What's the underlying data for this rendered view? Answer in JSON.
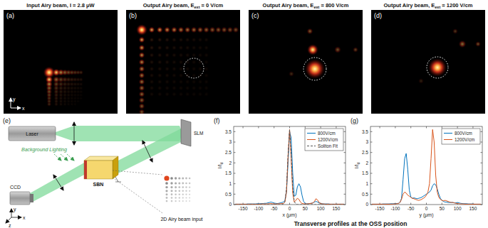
{
  "images": [
    {
      "label": "(a)",
      "title": "Input Airy beam, I = 2.8 μW",
      "axes": [
        "y",
        "x"
      ]
    },
    {
      "label": "(b)",
      "title": "Output Airy beam, E",
      "subscript": "ext",
      "title_end": " = 0 V/cm"
    },
    {
      "label": "(c)",
      "title": "Output Airy beam, E",
      "subscript": "ext",
      "title_end": " = 800 V/cm"
    },
    {
      "label": "(d)",
      "title": "Output Airy beam, E",
      "subscript": "ext",
      "title_end": " = 1200 V/cm"
    }
  ],
  "diagram": {
    "label": "(e)",
    "laser": "Laser",
    "lighting": "Background Lighting",
    "slm": "SLM",
    "crystal": "SBN",
    "camera": "CCD",
    "input": "2D Airy beam input",
    "axes": [
      "x",
      "y",
      "z"
    ]
  },
  "caption": "Transverse profiles at the OSS position",
  "chart_data": [
    {
      "type": "line",
      "label": "(f)",
      "xlabel": "x (μm)",
      "ylabel": "I/I",
      "ylabel_subscript": "d",
      "x": [
        -175,
        -170,
        -165,
        -160,
        -155,
        -150,
        -145,
        -140,
        -135,
        -130,
        -125,
        -120,
        -115,
        -110,
        -105,
        -100,
        -95,
        -90,
        -85,
        -80,
        -75,
        -70,
        -65,
        -60,
        -55,
        -50,
        -45,
        -40,
        -35,
        -30,
        -25,
        -20,
        -15,
        -10,
        -5,
        0,
        5,
        10,
        15,
        20,
        25,
        30,
        35,
        40,
        45,
        50,
        55,
        60,
        65,
        70,
        75,
        80,
        85,
        90,
        95,
        100,
        105,
        110,
        115,
        120,
        125,
        130,
        135,
        140,
        145,
        150,
        155,
        160,
        165,
        170,
        175
      ],
      "xlim": [
        -180,
        180
      ],
      "ylim": [
        0,
        3.75
      ],
      "xticks": [
        -150,
        -100,
        -50,
        0,
        50,
        100,
        150
      ],
      "yticks": [
        0,
        0.5,
        1,
        1.5,
        2,
        2.5,
        3,
        3.5
      ],
      "legend": "upper right",
      "series": [
        {
          "name": "800V/cm",
          "color": "#0072bd",
          "values": [
            0.02,
            0.02,
            0.02,
            0.02,
            0.02,
            0.02,
            0.02,
            0.02,
            0.03,
            0.03,
            0.03,
            0.03,
            0.03,
            0.03,
            0.04,
            0.04,
            0.04,
            0.05,
            0.05,
            0.06,
            0.06,
            0.08,
            0.1,
            0.12,
            0.1,
            0.07,
            0.06,
            0.05,
            0.06,
            0.08,
            0.1,
            0.12,
            0.2,
            0.6,
            2.0,
            3.5,
            3.2,
            1.5,
            0.4,
            0.45,
            0.85,
            1.0,
            0.85,
            0.45,
            0.15,
            0.06,
            0.04,
            0.04,
            0.05,
            0.06,
            0.08,
            0.12,
            0.15,
            0.12,
            0.08,
            0.05,
            0.04,
            0.03,
            0.03,
            0.03,
            0.03,
            0.02,
            0.02,
            0.02,
            0.02,
            0.02,
            0.02,
            0.02,
            0.02,
            0.02,
            0.02
          ]
        },
        {
          "name": "1200V/cm",
          "color": "#d95319",
          "values": [
            0.02,
            0.02,
            0.02,
            0.02,
            0.02,
            0.02,
            0.02,
            0.02,
            0.02,
            0.02,
            0.02,
            0.02,
            0.02,
            0.02,
            0.02,
            0.02,
            0.02,
            0.03,
            0.03,
            0.03,
            0.03,
            0.03,
            0.04,
            0.05,
            0.04,
            0.03,
            0.03,
            0.03,
            0.04,
            0.04,
            0.05,
            0.05,
            0.12,
            0.6,
            2.3,
            3.6,
            2.2,
            0.55,
            0.12,
            0.2,
            0.3,
            0.25,
            0.12,
            0.05,
            0.04,
            0.03,
            0.03,
            0.04,
            0.05,
            0.06,
            0.08,
            0.15,
            0.28,
            0.22,
            0.1,
            0.05,
            0.03,
            0.03,
            0.02,
            0.02,
            0.02,
            0.02,
            0.02,
            0.02,
            0.02,
            0.02,
            0.02,
            0.02,
            0.02,
            0.02,
            0.02
          ]
        },
        {
          "name": "Soliton Fit",
          "color": "#555555",
          "line_style": "dashed",
          "values": [
            0,
            0,
            0,
            0,
            0,
            0,
            0,
            0,
            0,
            0,
            0,
            0,
            0,
            0,
            0,
            0,
            0,
            0,
            0,
            0,
            0,
            0,
            0,
            0,
            0,
            0,
            0,
            0,
            0,
            0,
            0,
            0.03,
            0.15,
            0.8,
            2.4,
            3.6,
            2.4,
            0.8,
            0.15,
            0.03,
            0,
            0,
            0,
            0,
            0,
            0,
            0,
            0,
            0,
            0,
            0,
            0,
            0,
            0,
            0,
            0,
            0,
            0,
            0,
            0,
            0,
            0,
            0,
            0,
            0,
            0,
            0,
            0,
            0,
            0,
            0
          ]
        }
      ]
    },
    {
      "type": "line",
      "label": "(g)",
      "xlabel": "y (μm)",
      "ylabel": "I/I",
      "ylabel_subscript": "d",
      "x": [
        -175,
        -170,
        -165,
        -160,
        -155,
        -150,
        -145,
        -140,
        -135,
        -130,
        -125,
        -120,
        -115,
        -110,
        -105,
        -100,
        -95,
        -90,
        -85,
        -80,
        -75,
        -70,
        -65,
        -60,
        -55,
        -50,
        -45,
        -40,
        -35,
        -30,
        -25,
        -20,
        -15,
        -10,
        -5,
        0,
        5,
        10,
        15,
        20,
        25,
        30,
        35,
        40,
        45,
        50,
        55,
        60,
        65,
        70,
        75,
        80,
        85,
        90,
        95,
        100,
        105,
        110,
        115,
        120,
        125,
        130,
        135,
        140,
        145,
        150,
        155,
        160,
        165,
        170,
        175
      ],
      "xlim": [
        -180,
        180
      ],
      "ylim": [
        0,
        3.75
      ],
      "xticks": [
        -150,
        -100,
        -50,
        0,
        50,
        100,
        150
      ],
      "yticks": [
        0,
        0.5,
        1,
        1.5,
        2,
        2.5,
        3,
        3.5
      ],
      "legend": "upper right",
      "series": [
        {
          "name": "800V/cm",
          "color": "#0072bd",
          "values": [
            0.02,
            0.02,
            0.02,
            0.02,
            0.02,
            0.02,
            0.02,
            0.03,
            0.03,
            0.03,
            0.03,
            0.03,
            0.04,
            0.04,
            0.04,
            0.05,
            0.05,
            0.06,
            0.1,
            0.3,
            1.2,
            2.2,
            2.45,
            1.7,
            0.7,
            0.35,
            0.3,
            0.32,
            0.3,
            0.28,
            0.3,
            0.32,
            0.35,
            0.4,
            0.45,
            0.5,
            0.55,
            0.6,
            0.7,
            0.9,
            1.0,
            0.95,
            0.75,
            0.5,
            0.3,
            0.2,
            0.15,
            0.12,
            0.12,
            0.1,
            0.1,
            0.1,
            0.1,
            0.08,
            0.08,
            0.1,
            0.08,
            0.06,
            0.05,
            0.04,
            0.04,
            0.04,
            0.03,
            0.03,
            0.03,
            0.03,
            0.02,
            0.02,
            0.02,
            0.02,
            0.02
          ]
        },
        {
          "name": "1200V/cm",
          "color": "#d95319",
          "values": [
            0.02,
            0.02,
            0.02,
            0.02,
            0.02,
            0.02,
            0.02,
            0.02,
            0.02,
            0.02,
            0.02,
            0.02,
            0.02,
            0.02,
            0.03,
            0.03,
            0.04,
            0.05,
            0.1,
            0.25,
            0.5,
            0.6,
            0.55,
            0.45,
            0.4,
            0.35,
            0.3,
            0.28,
            0.25,
            0.22,
            0.2,
            0.22,
            0.25,
            0.3,
            0.35,
            0.45,
            0.6,
            1.0,
            2.2,
            3.6,
            3.0,
            1.4,
            0.6,
            0.35,
            0.25,
            0.2,
            0.18,
            0.2,
            0.18,
            0.15,
            0.12,
            0.1,
            0.1,
            0.08,
            0.06,
            0.05,
            0.04,
            0.03,
            0.03,
            0.03,
            0.02,
            0.02,
            0.02,
            0.02,
            0.02,
            0.02,
            0.02,
            0.02,
            0.02,
            0.02,
            0.02
          ]
        }
      ]
    }
  ]
}
